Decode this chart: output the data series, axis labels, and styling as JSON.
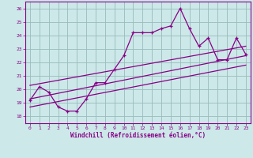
{
  "xlabel": "Windchill (Refroidissement éolien,°C)",
  "bg_color": "#cce8e8",
  "line_color": "#880088",
  "grid_color": "#99bbbb",
  "xlim": [
    -0.5,
    23.5
  ],
  "ylim": [
    17.5,
    26.5
  ],
  "xticks": [
    0,
    1,
    2,
    3,
    4,
    5,
    6,
    7,
    8,
    9,
    10,
    11,
    12,
    13,
    14,
    15,
    16,
    17,
    18,
    19,
    20,
    21,
    22,
    23
  ],
  "yticks": [
    18,
    19,
    20,
    21,
    22,
    23,
    24,
    25,
    26
  ],
  "series1_x": [
    0,
    1,
    2,
    3,
    4,
    5,
    6,
    7,
    8,
    9,
    10,
    11,
    12,
    13,
    14,
    15,
    16,
    17,
    18,
    19,
    20,
    21,
    22,
    23
  ],
  "series1_y": [
    19.2,
    20.2,
    19.8,
    18.7,
    18.4,
    18.4,
    19.3,
    20.5,
    20.5,
    21.5,
    22.5,
    24.2,
    24.2,
    24.2,
    24.5,
    24.7,
    26.0,
    24.5,
    23.2,
    23.8,
    22.2,
    22.2,
    23.8,
    22.6
  ],
  "trend1_x": [
    0,
    23
  ],
  "trend1_y": [
    19.3,
    22.5
  ],
  "trend2_x": [
    0,
    23
  ],
  "trend2_y": [
    20.3,
    23.2
  ],
  "trend3_x": [
    0,
    23
  ],
  "trend3_y": [
    18.7,
    21.8
  ]
}
